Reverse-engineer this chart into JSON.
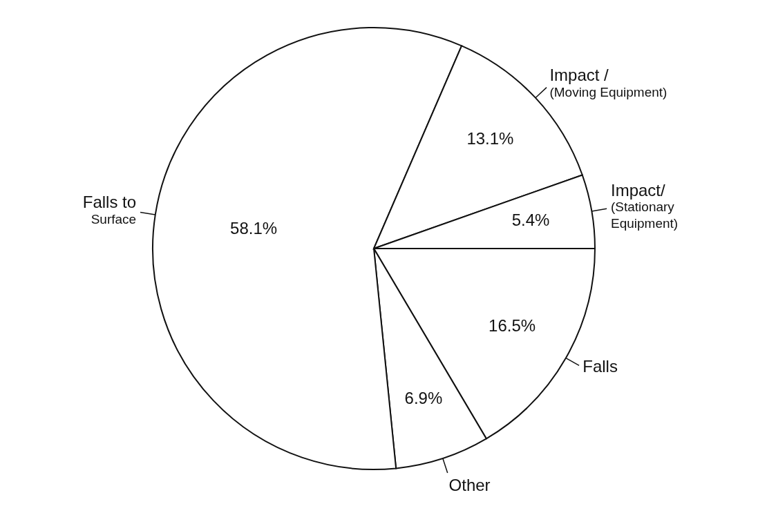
{
  "chart_data": {
    "type": "pie",
    "categories": [
      "Falls",
      "Other",
      "Falls to\nSurface",
      "Impact /\n(Moving Equipment)",
      "Impact/\n(Stationary\nEquipment)"
    ],
    "values": [
      16.5,
      6.9,
      58.1,
      13.1,
      5.4
    ],
    "value_labels": [
      "16.5%",
      "6.9%",
      "58.1%",
      "13.1%",
      "5.4%"
    ],
    "colors": [
      "#ffffff",
      "#ffffff",
      "#ffffff",
      "#ffffff",
      "#ffffff"
    ]
  }
}
